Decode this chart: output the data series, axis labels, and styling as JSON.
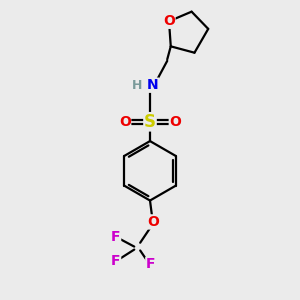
{
  "background_color": "#ebebeb",
  "atom_colors": {
    "C": "#000000",
    "H": "#7a9a9a",
    "N": "#0000ee",
    "O": "#ee0000",
    "S": "#cccc00",
    "F": "#cc00cc"
  },
  "bond_color": "#000000",
  "bond_width": 1.6,
  "font_size": 10,
  "fig_width": 3.0,
  "fig_height": 3.0,
  "dpi": 100
}
